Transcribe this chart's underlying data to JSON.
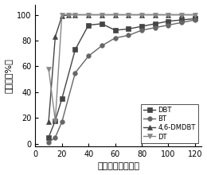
{
  "title": "",
  "xlabel": "反应时间（分钟）",
  "ylabel": "脲硫率（%）",
  "xlim": [
    0,
    125
  ],
  "ylim": [
    -2,
    108
  ],
  "xticks": [
    0,
    20,
    40,
    60,
    80,
    100,
    120
  ],
  "yticks": [
    0,
    20,
    40,
    60,
    80,
    100
  ],
  "series": [
    {
      "label": "DBT",
      "marker": "s",
      "color": "#444444",
      "x": [
        10,
        15,
        20,
        30,
        40,
        50,
        60,
        70,
        80,
        90,
        100,
        110,
        120
      ],
      "y": [
        5,
        18,
        35,
        73,
        92,
        93,
        88,
        89,
        91,
        93,
        95,
        96,
        97
      ]
    },
    {
      "label": "BT",
      "marker": "o",
      "color": "#666666",
      "x": [
        10,
        15,
        20,
        30,
        40,
        50,
        60,
        70,
        80,
        90,
        100,
        110,
        120
      ],
      "y": [
        1,
        5,
        17,
        55,
        68,
        76,
        82,
        84,
        88,
        90,
        92,
        94,
        96
      ]
    },
    {
      "label": "4,6-DMDBT",
      "marker": "^",
      "color": "#444444",
      "x": [
        10,
        15,
        20,
        25,
        30,
        40,
        50,
        60,
        70,
        80,
        90,
        100,
        110,
        120
      ],
      "y": [
        17,
        83,
        99,
        100,
        100,
        100,
        100,
        100,
        100,
        100,
        100,
        100,
        100,
        100
      ]
    },
    {
      "label": "DT",
      "marker": "v",
      "color": "#888888",
      "x": [
        10,
        15,
        20,
        25,
        30,
        40,
        50,
        60,
        70,
        80,
        90,
        100,
        110,
        120
      ],
      "y": [
        58,
        18,
        100,
        100,
        100,
        100,
        100,
        100,
        100,
        100,
        100,
        100,
        100,
        100
      ]
    }
  ],
  "legend_loc": "lower right",
  "background_color": "#ffffff",
  "axis_label_fontsize": 8,
  "tick_fontsize": 7,
  "legend_fontsize": 6,
  "marker_size": 4,
  "line_width": 1.0
}
